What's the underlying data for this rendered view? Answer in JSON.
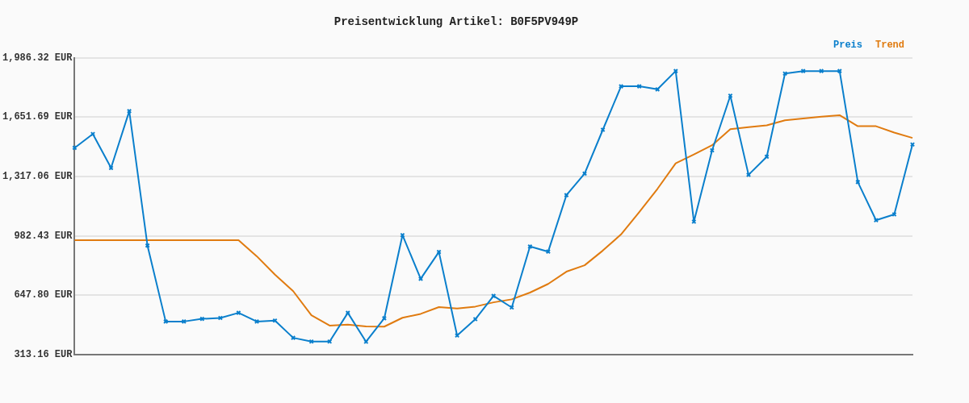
{
  "chart_data": {
    "type": "line",
    "title": "Preisentwicklung Artikel: B0F5PV949P",
    "categories": [
      null,
      null,
      null,
      null,
      null,
      null,
      null,
      null,
      null,
      null,
      null,
      null,
      null,
      null,
      null,
      null,
      null,
      null,
      null,
      null,
      null,
      null,
      null,
      null,
      null,
      null,
      null,
      null,
      null,
      null,
      null,
      null,
      null,
      null,
      null,
      null,
      null,
      null,
      null,
      null,
      null,
      null,
      null,
      null,
      null,
      null,
      null
    ],
    "series": [
      {
        "name": "Preis",
        "color": "#0a7fcc",
        "marker": "cross",
        "values": [
          1479,
          1557,
          1366,
          1686,
          928,
          500,
          500,
          515,
          520,
          549,
          500,
          505,
          408,
          387,
          387,
          549,
          386,
          518,
          987,
          741,
          892,
          421,
          513,
          644,
          579,
          923,
          894,
          1212,
          1334,
          1581,
          1826,
          1826,
          1809,
          1912,
          1063,
          1465,
          1773,
          1327,
          1429,
          1898,
          1912,
          1912,
          1912,
          1286,
          1071,
          1104,
          1498
        ]
      },
      {
        "name": "Trend",
        "color": "#e07b10",
        "marker": "none",
        "values": [
          958,
          958,
          958,
          958,
          958,
          958,
          958,
          958,
          958,
          958,
          868,
          764,
          671,
          535,
          477,
          482,
          472,
          471,
          521,
          543,
          581,
          573,
          584,
          608,
          625,
          663,
          712,
          781,
          817,
          900,
          991,
          1117,
          1248,
          1392,
          1442,
          1494,
          1584,
          1596,
          1606,
          1634,
          1645,
          1655,
          1663,
          1601,
          1601,
          1565,
          1535
        ]
      }
    ],
    "ylim": [
      313.16,
      1986.32
    ],
    "yticks": [
      {
        "value": 313.16,
        "label": "313.16 EUR"
      },
      {
        "value": 647.8,
        "label": "647.80 EUR"
      },
      {
        "value": 982.43,
        "label": "982.43 EUR"
      },
      {
        "value": 1317.06,
        "label": "1,317.06 EUR"
      },
      {
        "value": 1651.69,
        "label": "1,651.69 EUR"
      },
      {
        "value": 1986.32,
        "label": "1,986.32 EUR"
      }
    ],
    "grid": "y",
    "legend": "top right",
    "line_style": "solid"
  }
}
